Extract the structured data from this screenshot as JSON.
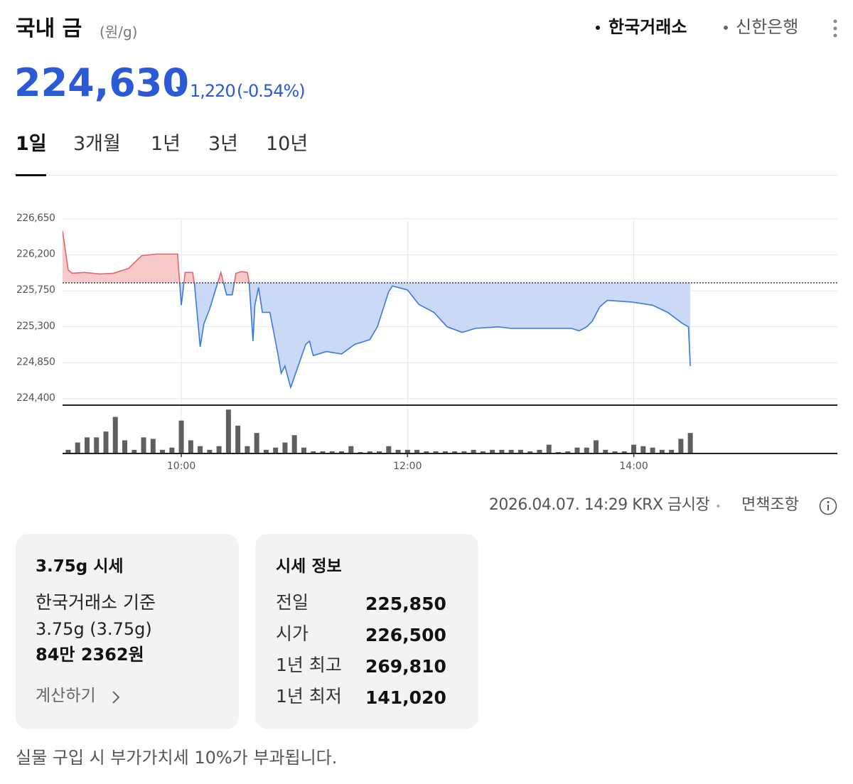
{
  "header": {
    "title": "국내 금",
    "unit": "(원/g)",
    "sources": [
      "한국거래소",
      "신한은행"
    ]
  },
  "price": {
    "value": "224,630",
    "change": "1,220",
    "change_pct": "(-0.54%)"
  },
  "tabs": [
    "1일",
    "3개월",
    "1년",
    "3년",
    "10년"
  ],
  "chart_data": {
    "type": "line",
    "series": [
      {
        "name": "국내 금",
        "up_color": "#e5646b",
        "up_fill": "#f8c9cb",
        "down_color": "#3b78de",
        "down_fill": "#cadaf6",
        "x": [
          537,
          540,
          542,
          549,
          557,
          564,
          572,
          579,
          587,
          598,
          600,
          602,
          606,
          607,
          610,
          612,
          615,
          619,
          621,
          624,
          627,
          629,
          632,
          635,
          636,
          638,
          639,
          641,
          643,
          647,
          651,
          653,
          655,
          658,
          662,
          666,
          668,
          670,
          677,
          685,
          692,
          700,
          704,
          707,
          710,
          712,
          720,
          726,
          734,
          741,
          749,
          756,
          768,
          775,
          790,
          807,
          811,
          815,
          818,
          822,
          826,
          839,
          850,
          858,
          866,
          869,
          870
        ],
        "values": [
          226500,
          226010,
          225970,
          225980,
          225960,
          225970,
          226030,
          226190,
          226210,
          226210,
          225570,
          225980,
          225980,
          225830,
          225050,
          225340,
          225520,
          225830,
          225980,
          225700,
          225700,
          225970,
          225990,
          225980,
          225850,
          225120,
          225570,
          225790,
          225480,
          225480,
          224990,
          224720,
          224810,
          224540,
          224810,
          225080,
          225120,
          224940,
          224990,
          224960,
          225080,
          225140,
          225300,
          225520,
          225740,
          225810,
          225760,
          225580,
          225480,
          225300,
          225230,
          225280,
          225300,
          225280,
          225280,
          225280,
          225250,
          225300,
          225370,
          225550,
          225630,
          225610,
          225570,
          225480,
          225340,
          225300,
          224810
        ]
      }
    ],
    "baseline": 225850,
    "xlim": [
      537,
      948
    ],
    "xticks": [
      {
        "value": 600,
        "label": "10:00"
      },
      {
        "value": 720,
        "label": "12:00"
      },
      {
        "value": 840,
        "label": "14:00"
      }
    ],
    "ylim": [
      224320,
      226720
    ],
    "yticks": [
      {
        "value": 224400,
        "label": "224,400"
      },
      {
        "value": 224850,
        "label": "224,850"
      },
      {
        "value": 225300,
        "label": "225,300"
      },
      {
        "value": 225750,
        "label": "225,750"
      },
      {
        "value": 226200,
        "label": "226,200"
      },
      {
        "value": 226650,
        "label": "226,650"
      }
    ],
    "grid": true,
    "volume": {
      "color": "#5f5f5f",
      "ylim": [
        0,
        68
      ],
      "x": [
        540,
        545,
        550,
        555,
        560,
        565,
        570,
        575,
        580,
        585,
        590,
        595,
        600,
        605,
        610,
        615,
        620,
        625,
        630,
        635,
        640,
        645,
        650,
        655,
        660,
        665,
        670,
        675,
        680,
        685,
        690,
        695,
        700,
        705,
        710,
        715,
        720,
        725,
        730,
        735,
        740,
        745,
        750,
        755,
        760,
        765,
        770,
        775,
        780,
        785,
        790,
        795,
        800,
        805,
        810,
        815,
        820,
        825,
        830,
        835,
        840,
        845,
        850,
        855,
        860,
        865,
        870
      ],
      "values": [
        5,
        15,
        22,
        22,
        30,
        50,
        18,
        5,
        22,
        20,
        5,
        8,
        45,
        18,
        10,
        5,
        10,
        60,
        38,
        10,
        28,
        5,
        8,
        15,
        25,
        8,
        3,
        3,
        3,
        3,
        10,
        2,
        3,
        3,
        10,
        5,
        5,
        5,
        3,
        3,
        3,
        3,
        3,
        5,
        3,
        5,
        5,
        5,
        5,
        3,
        5,
        12,
        2,
        3,
        8,
        8,
        18,
        5,
        3,
        3,
        12,
        10,
        8,
        5,
        5,
        20,
        28
      ]
    }
  },
  "footer": {
    "timestamp": "2026.04.07. 14:29",
    "source": "KRX 금시장",
    "disclaimer": "면책조항"
  },
  "card": {
    "title": "3.75g 시세",
    "basis": "한국거래소 기준",
    "weight": "3.75g (3.75g)",
    "amount": "84만 2362원",
    "link": "계산하기"
  },
  "info": {
    "title": "시세 정보",
    "rows": [
      [
        "전일",
        "225,850"
      ],
      [
        "시가",
        "226,500"
      ],
      [
        "1년 최고",
        "269,810"
      ],
      [
        "1년 최저",
        "141,020"
      ]
    ]
  },
  "note": "실물 구입 시 부가가치세 10%가 부과됩니다."
}
